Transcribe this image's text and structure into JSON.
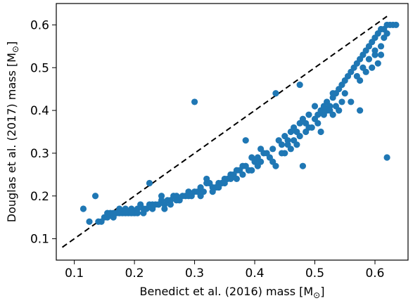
{
  "chart_data": {
    "type": "scatter",
    "xlabel": "Benedict et al. (2016) mass [M",
    "xlabel_unit_symbol": "⊙",
    "xlabel_close": "]",
    "ylabel": "Douglas et al. (2017) mass [M",
    "ylabel_unit_symbol": "⊙",
    "ylabel_close": "]",
    "xlim": [
      0.07,
      0.655
    ],
    "ylim": [
      0.05,
      0.65
    ],
    "xticks": [
      0.1,
      0.2,
      0.3,
      0.4,
      0.5,
      0.6
    ],
    "xtick_labels": [
      "0.1",
      "0.2",
      "0.3",
      "0.4",
      "0.5",
      "0.6"
    ],
    "yticks": [
      0.1,
      0.2,
      0.3,
      0.4,
      0.5,
      0.6
    ],
    "ytick_labels": [
      "0.1",
      "0.2",
      "0.3",
      "0.4",
      "0.5",
      "0.6"
    ],
    "grid": false,
    "colors": {
      "points": "#1f77b4",
      "reference_line": "#000000"
    },
    "reference_line": {
      "style": "dashed",
      "x": [
        0.08,
        0.62
      ],
      "y": [
        0.08,
        0.62
      ]
    },
    "points": [
      [
        0.115,
        0.17
      ],
      [
        0.135,
        0.2
      ],
      [
        0.125,
        0.14
      ],
      [
        0.14,
        0.14
      ],
      [
        0.145,
        0.14
      ],
      [
        0.15,
        0.15
      ],
      [
        0.155,
        0.15
      ],
      [
        0.16,
        0.16
      ],
      [
        0.165,
        0.15
      ],
      [
        0.17,
        0.16
      ],
      [
        0.175,
        0.16
      ],
      [
        0.18,
        0.16
      ],
      [
        0.185,
        0.16
      ],
      [
        0.19,
        0.16
      ],
      [
        0.195,
        0.17
      ],
      [
        0.2,
        0.16
      ],
      [
        0.205,
        0.17
      ],
      [
        0.21,
        0.18
      ],
      [
        0.215,
        0.16
      ],
      [
        0.22,
        0.17
      ],
      [
        0.225,
        0.18
      ],
      [
        0.23,
        0.17
      ],
      [
        0.235,
        0.18
      ],
      [
        0.24,
        0.18
      ],
      [
        0.245,
        0.19
      ],
      [
        0.25,
        0.18
      ],
      [
        0.255,
        0.19
      ],
      [
        0.26,
        0.19
      ],
      [
        0.265,
        0.2
      ],
      [
        0.27,
        0.2
      ],
      [
        0.275,
        0.19
      ],
      [
        0.28,
        0.2
      ],
      [
        0.285,
        0.2
      ],
      [
        0.29,
        0.21
      ],
      [
        0.295,
        0.2
      ],
      [
        0.3,
        0.21
      ],
      [
        0.305,
        0.21
      ],
      [
        0.31,
        0.22
      ],
      [
        0.315,
        0.21
      ],
      [
        0.32,
        0.23
      ],
      [
        0.325,
        0.23
      ],
      [
        0.33,
        0.22
      ],
      [
        0.335,
        0.22
      ],
      [
        0.34,
        0.23
      ],
      [
        0.345,
        0.23
      ],
      [
        0.35,
        0.24
      ],
      [
        0.355,
        0.24
      ],
      [
        0.36,
        0.25
      ],
      [
        0.365,
        0.25
      ],
      [
        0.37,
        0.26
      ],
      [
        0.375,
        0.26
      ],
      [
        0.38,
        0.27
      ],
      [
        0.385,
        0.27
      ],
      [
        0.39,
        0.26
      ],
      [
        0.395,
        0.29
      ],
      [
        0.4,
        0.28
      ],
      [
        0.405,
        0.29
      ],
      [
        0.41,
        0.28
      ],
      [
        0.415,
        0.3
      ],
      [
        0.42,
        0.3
      ],
      [
        0.43,
        0.31
      ],
      [
        0.44,
        0.33
      ],
      [
        0.445,
        0.32
      ],
      [
        0.45,
        0.34
      ],
      [
        0.455,
        0.33
      ],
      [
        0.46,
        0.35
      ],
      [
        0.465,
        0.36
      ],
      [
        0.47,
        0.35
      ],
      [
        0.475,
        0.37
      ],
      [
        0.48,
        0.38
      ],
      [
        0.485,
        0.37
      ],
      [
        0.49,
        0.39
      ],
      [
        0.5,
        0.38
      ],
      [
        0.505,
        0.39
      ],
      [
        0.51,
        0.4
      ],
      [
        0.515,
        0.41
      ],
      [
        0.52,
        0.42
      ],
      [
        0.525,
        0.41
      ],
      [
        0.53,
        0.43
      ],
      [
        0.535,
        0.44
      ],
      [
        0.54,
        0.45
      ],
      [
        0.545,
        0.46
      ],
      [
        0.55,
        0.47
      ],
      [
        0.555,
        0.48
      ],
      [
        0.56,
        0.49
      ],
      [
        0.565,
        0.5
      ],
      [
        0.57,
        0.51
      ],
      [
        0.575,
        0.52
      ],
      [
        0.58,
        0.53
      ],
      [
        0.585,
        0.54
      ],
      [
        0.59,
        0.55
      ],
      [
        0.595,
        0.56
      ],
      [
        0.6,
        0.57
      ],
      [
        0.605,
        0.58
      ],
      [
        0.61,
        0.59
      ],
      [
        0.615,
        0.59
      ],
      [
        0.62,
        0.6
      ],
      [
        0.625,
        0.6
      ],
      [
        0.63,
        0.6
      ],
      [
        0.635,
        0.6
      ],
      [
        0.3,
        0.42
      ],
      [
        0.435,
        0.44
      ],
      [
        0.475,
        0.46
      ],
      [
        0.575,
        0.4
      ],
      [
        0.62,
        0.29
      ],
      [
        0.48,
        0.27
      ],
      [
        0.435,
        0.27
      ],
      [
        0.53,
        0.44
      ],
      [
        0.51,
        0.35
      ],
      [
        0.225,
        0.23
      ],
      [
        0.245,
        0.2
      ],
      [
        0.32,
        0.24
      ],
      [
        0.37,
        0.24
      ],
      [
        0.385,
        0.33
      ],
      [
        0.41,
        0.31
      ],
      [
        0.43,
        0.28
      ],
      [
        0.45,
        0.3
      ],
      [
        0.46,
        0.31
      ],
      [
        0.47,
        0.32
      ],
      [
        0.49,
        0.36
      ],
      [
        0.5,
        0.41
      ],
      [
        0.52,
        0.4
      ],
      [
        0.53,
        0.39
      ],
      [
        0.54,
        0.4
      ],
      [
        0.56,
        0.42
      ],
      [
        0.57,
        0.48
      ],
      [
        0.58,
        0.5
      ],
      [
        0.59,
        0.52
      ],
      [
        0.6,
        0.53
      ],
      [
        0.61,
        0.55
      ],
      [
        0.605,
        0.51
      ],
      [
        0.61,
        0.53
      ],
      [
        0.615,
        0.57
      ],
      [
        0.62,
        0.58
      ],
      [
        0.6,
        0.54
      ],
      [
        0.595,
        0.5
      ],
      [
        0.585,
        0.49
      ],
      [
        0.575,
        0.47
      ],
      [
        0.55,
        0.44
      ],
      [
        0.545,
        0.42
      ],
      [
        0.535,
        0.41
      ],
      [
        0.525,
        0.4
      ],
      [
        0.515,
        0.39
      ],
      [
        0.505,
        0.37
      ],
      [
        0.495,
        0.36
      ],
      [
        0.485,
        0.35
      ],
      [
        0.475,
        0.34
      ],
      [
        0.465,
        0.33
      ],
      [
        0.455,
        0.32
      ],
      [
        0.445,
        0.3
      ],
      [
        0.425,
        0.29
      ],
      [
        0.405,
        0.27
      ],
      [
        0.395,
        0.26
      ],
      [
        0.38,
        0.25
      ],
      [
        0.36,
        0.24
      ],
      [
        0.35,
        0.23
      ],
      [
        0.34,
        0.22
      ],
      [
        0.33,
        0.21
      ],
      [
        0.31,
        0.2
      ],
      [
        0.29,
        0.2
      ],
      [
        0.27,
        0.19
      ],
      [
        0.26,
        0.18
      ],
      [
        0.25,
        0.17
      ],
      [
        0.24,
        0.18
      ],
      [
        0.23,
        0.18
      ],
      [
        0.215,
        0.17
      ],
      [
        0.205,
        0.16
      ],
      [
        0.195,
        0.16
      ],
      [
        0.185,
        0.17
      ],
      [
        0.175,
        0.17
      ],
      [
        0.165,
        0.16
      ],
      [
        0.155,
        0.16
      ]
    ]
  }
}
